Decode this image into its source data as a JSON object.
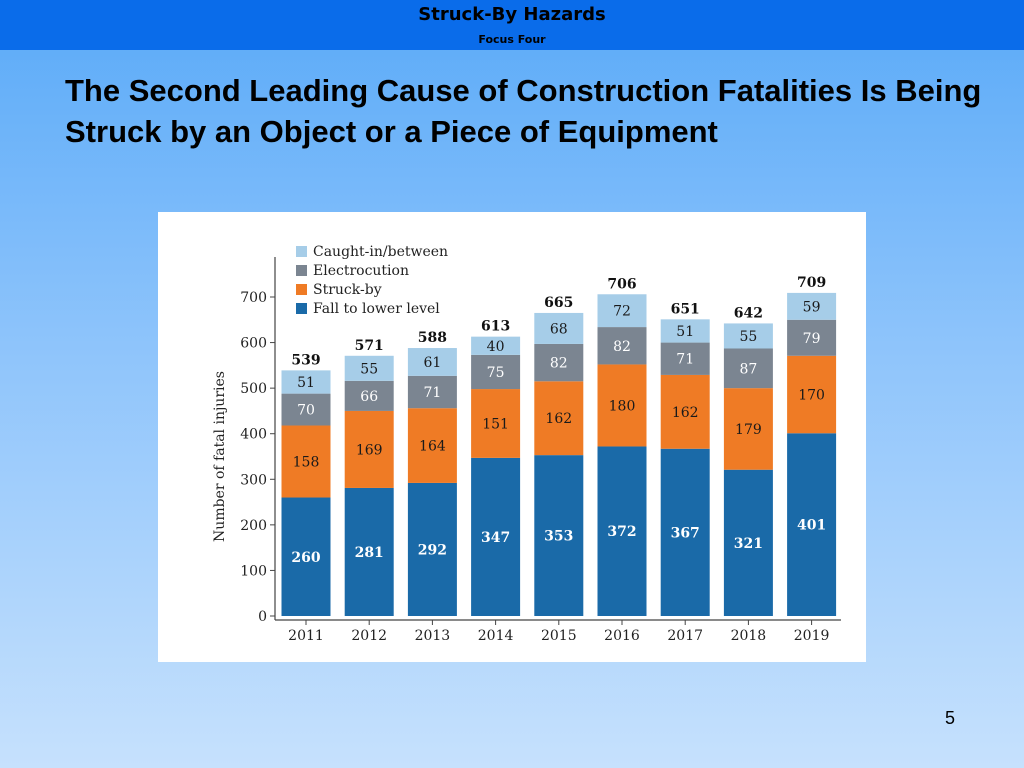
{
  "header": {
    "title": "Struck-By Hazards",
    "subtitle": "Focus Four"
  },
  "slide": {
    "heading": "The Second Leading Cause of Construction Fatalities Is Being Struck by an Object or a Piece of Equipment",
    "page_number": "5"
  },
  "chart_data": {
    "type": "bar",
    "stacked": true,
    "categories": [
      "2011",
      "2012",
      "2013",
      "2014",
      "2015",
      "2016",
      "2017",
      "2018",
      "2019"
    ],
    "series": [
      {
        "name": "Fall to lower level",
        "color": "#1a6aa8",
        "values": [
          260,
          281,
          292,
          347,
          353,
          372,
          367,
          321,
          401
        ]
      },
      {
        "name": "Struck-by",
        "color": "#ef7b25",
        "values": [
          158,
          169,
          164,
          151,
          162,
          180,
          162,
          179,
          170
        ]
      },
      {
        "name": "Electrocution",
        "color": "#7b8591",
        "values": [
          70,
          66,
          71,
          75,
          82,
          82,
          71,
          87,
          79
        ]
      },
      {
        "name": "Caught-in/between",
        "color": "#a6cde8",
        "values": [
          51,
          55,
          61,
          40,
          68,
          72,
          51,
          55,
          59
        ]
      }
    ],
    "totals": [
      539,
      571,
      588,
      613,
      665,
      706,
      651,
      642,
      709
    ],
    "ylabel": "Number of fatal injuries",
    "xlabel": "",
    "ylim": [
      0,
      700
    ],
    "yticks": [
      "0",
      "100",
      "200",
      "300",
      "400",
      "500",
      "600",
      "700"
    ],
    "legend_position": "top-left",
    "grid": false
  }
}
